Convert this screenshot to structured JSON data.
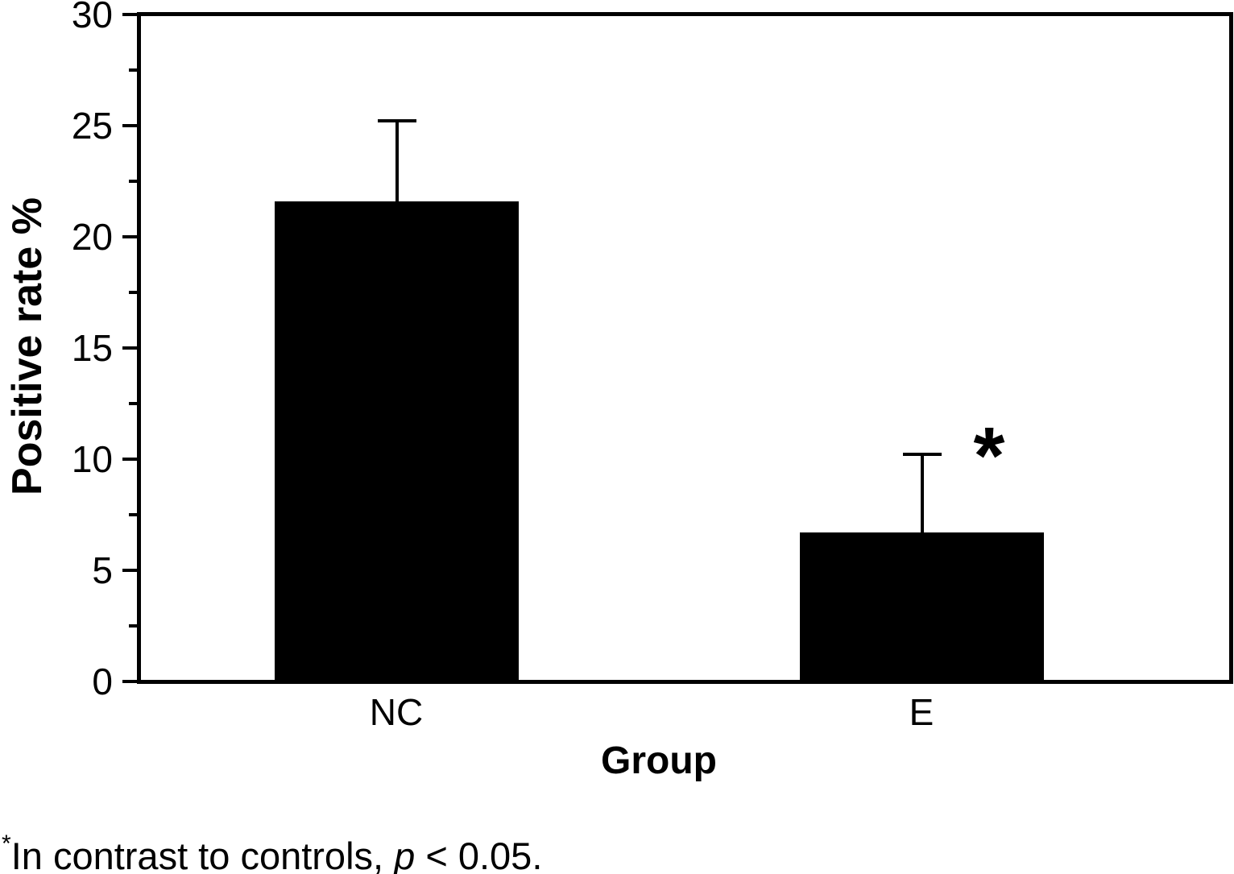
{
  "chart_data": {
    "type": "bar",
    "title": "",
    "xlabel": "Group",
    "ylabel": "Positive rate %",
    "categories": [
      "NC",
      "E"
    ],
    "values": [
      21.6,
      6.7
    ],
    "errors_plus": [
      3.6,
      3.5
    ],
    "ylim": [
      0,
      30
    ],
    "yticks_major": [
      0,
      5,
      10,
      15,
      20,
      25,
      30
    ],
    "yticks_minor": [
      2.5,
      7.5,
      12.5,
      17.5,
      22.5,
      27.5
    ],
    "grid": "off",
    "legend": "none",
    "bar_color": "#000000",
    "axis_color": "#000000",
    "background_color": "#ffffff",
    "annotations": [
      {
        "text": "*",
        "meaning": "significant vs controls",
        "category": "E"
      }
    ]
  },
  "footnote": {
    "superscript": "*",
    "text_before_p": "In contrast to controls, ",
    "p_symbol": "p",
    "text_after_p": " < 0.05."
  }
}
